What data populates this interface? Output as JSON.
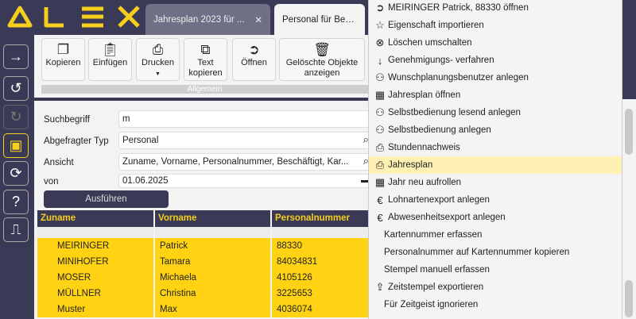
{
  "app": {
    "logo": "ALEX",
    "accent": "#ffd313",
    "dark": "#3a3a57"
  },
  "tabs": [
    {
      "label": "Jahresplan 2023 für ...",
      "close": "✕"
    },
    {
      "label": "Personal für Beschäf..."
    }
  ],
  "sidebar": [
    {
      "icon": "arrow-right-icon"
    },
    {
      "icon": "undo-icon"
    },
    {
      "icon": "redo-icon"
    },
    {
      "icon": "save-icon"
    },
    {
      "icon": "refresh-icon"
    },
    {
      "icon": "help-icon"
    },
    {
      "icon": "exit-door-icon"
    }
  ],
  "toolbar": {
    "buttons": [
      {
        "label": "Kopieren",
        "icon": "copy-icon"
      },
      {
        "label": "Einfügen",
        "icon": "clipboard-icon"
      },
      {
        "label": "Drucken",
        "icon": "printer-icon"
      },
      {
        "label": "Text kopieren",
        "icon": "text-copy-icon"
      },
      {
        "label": "Öffnen",
        "icon": "open-icon"
      },
      {
        "label": "Gelöschte Objekte anzeigen",
        "icon": "trash-icon"
      }
    ],
    "group": "Allgemein"
  },
  "form": {
    "suchbegriff_label": "Suchbegriff",
    "suchbegriff": "m",
    "typ_label": "Abgefragter Typ",
    "typ": "Personal",
    "ansicht_label": "Ansicht",
    "ansicht": "Zuname, Vorname, Personalnummer, Beschäftigt, Kar...",
    "von_label": "von",
    "von": "01.06.2025",
    "run": "Ausführen"
  },
  "table": {
    "headers": [
      "Zuname",
      "Vorname",
      "Personalnummer"
    ],
    "rows": [
      [
        "MEIRINGER",
        "Patrick",
        "88330"
      ],
      [
        "MINIHOFER",
        "Tamara",
        "84034831"
      ],
      [
        "MOSER",
        "Michaela",
        "4105126"
      ],
      [
        "MÜLLNER",
        "Christina",
        "3225653"
      ],
      [
        "Muster",
        "Max",
        "4036074"
      ]
    ]
  },
  "menu": [
    {
      "label": "MEIRINGER Patrick, 88330 öffnen",
      "icon": "open-circle-arrow-icon"
    },
    {
      "label": "Eigenschaft importieren",
      "icon": "star-plus-icon"
    },
    {
      "label": "Löschen umschalten",
      "icon": "circle-x-icon"
    },
    {
      "label": "Genehmigungs- verfahren",
      "icon": "arrow-down-icon"
    },
    {
      "label": "Wunschplanungsbenutzer anlegen",
      "icon": "user-plus-icon"
    },
    {
      "label": "Jahresplan öffnen",
      "icon": "calendar-plus-icon"
    },
    {
      "label": "Selbstbedienung lesend anlegen",
      "icon": "user-eye-icon"
    },
    {
      "label": "Selbstbedienung anlegen",
      "icon": "user-plus-icon"
    },
    {
      "label": "Stundennachweis",
      "icon": "printer-icon"
    },
    {
      "label": "Jahresplan",
      "icon": "printer-icon",
      "highlighted": true
    },
    {
      "label": "Jahr neu aufrollen",
      "icon": "calendar-play-icon"
    },
    {
      "label": "Lohnartenexport anlegen",
      "icon": "euro-icon"
    },
    {
      "label": "Abwesenheitsexport anlegen",
      "icon": "euro-icon"
    },
    {
      "label": "Kartennummer erfassen"
    },
    {
      "label": "Personalnummer auf Kartennummer kopieren"
    },
    {
      "label": "Stempel manuell erfassen"
    },
    {
      "label": "Zeitstempel exportieren",
      "icon": "upload-icon"
    },
    {
      "label": "Für Zeitgeist ignorieren"
    }
  ]
}
